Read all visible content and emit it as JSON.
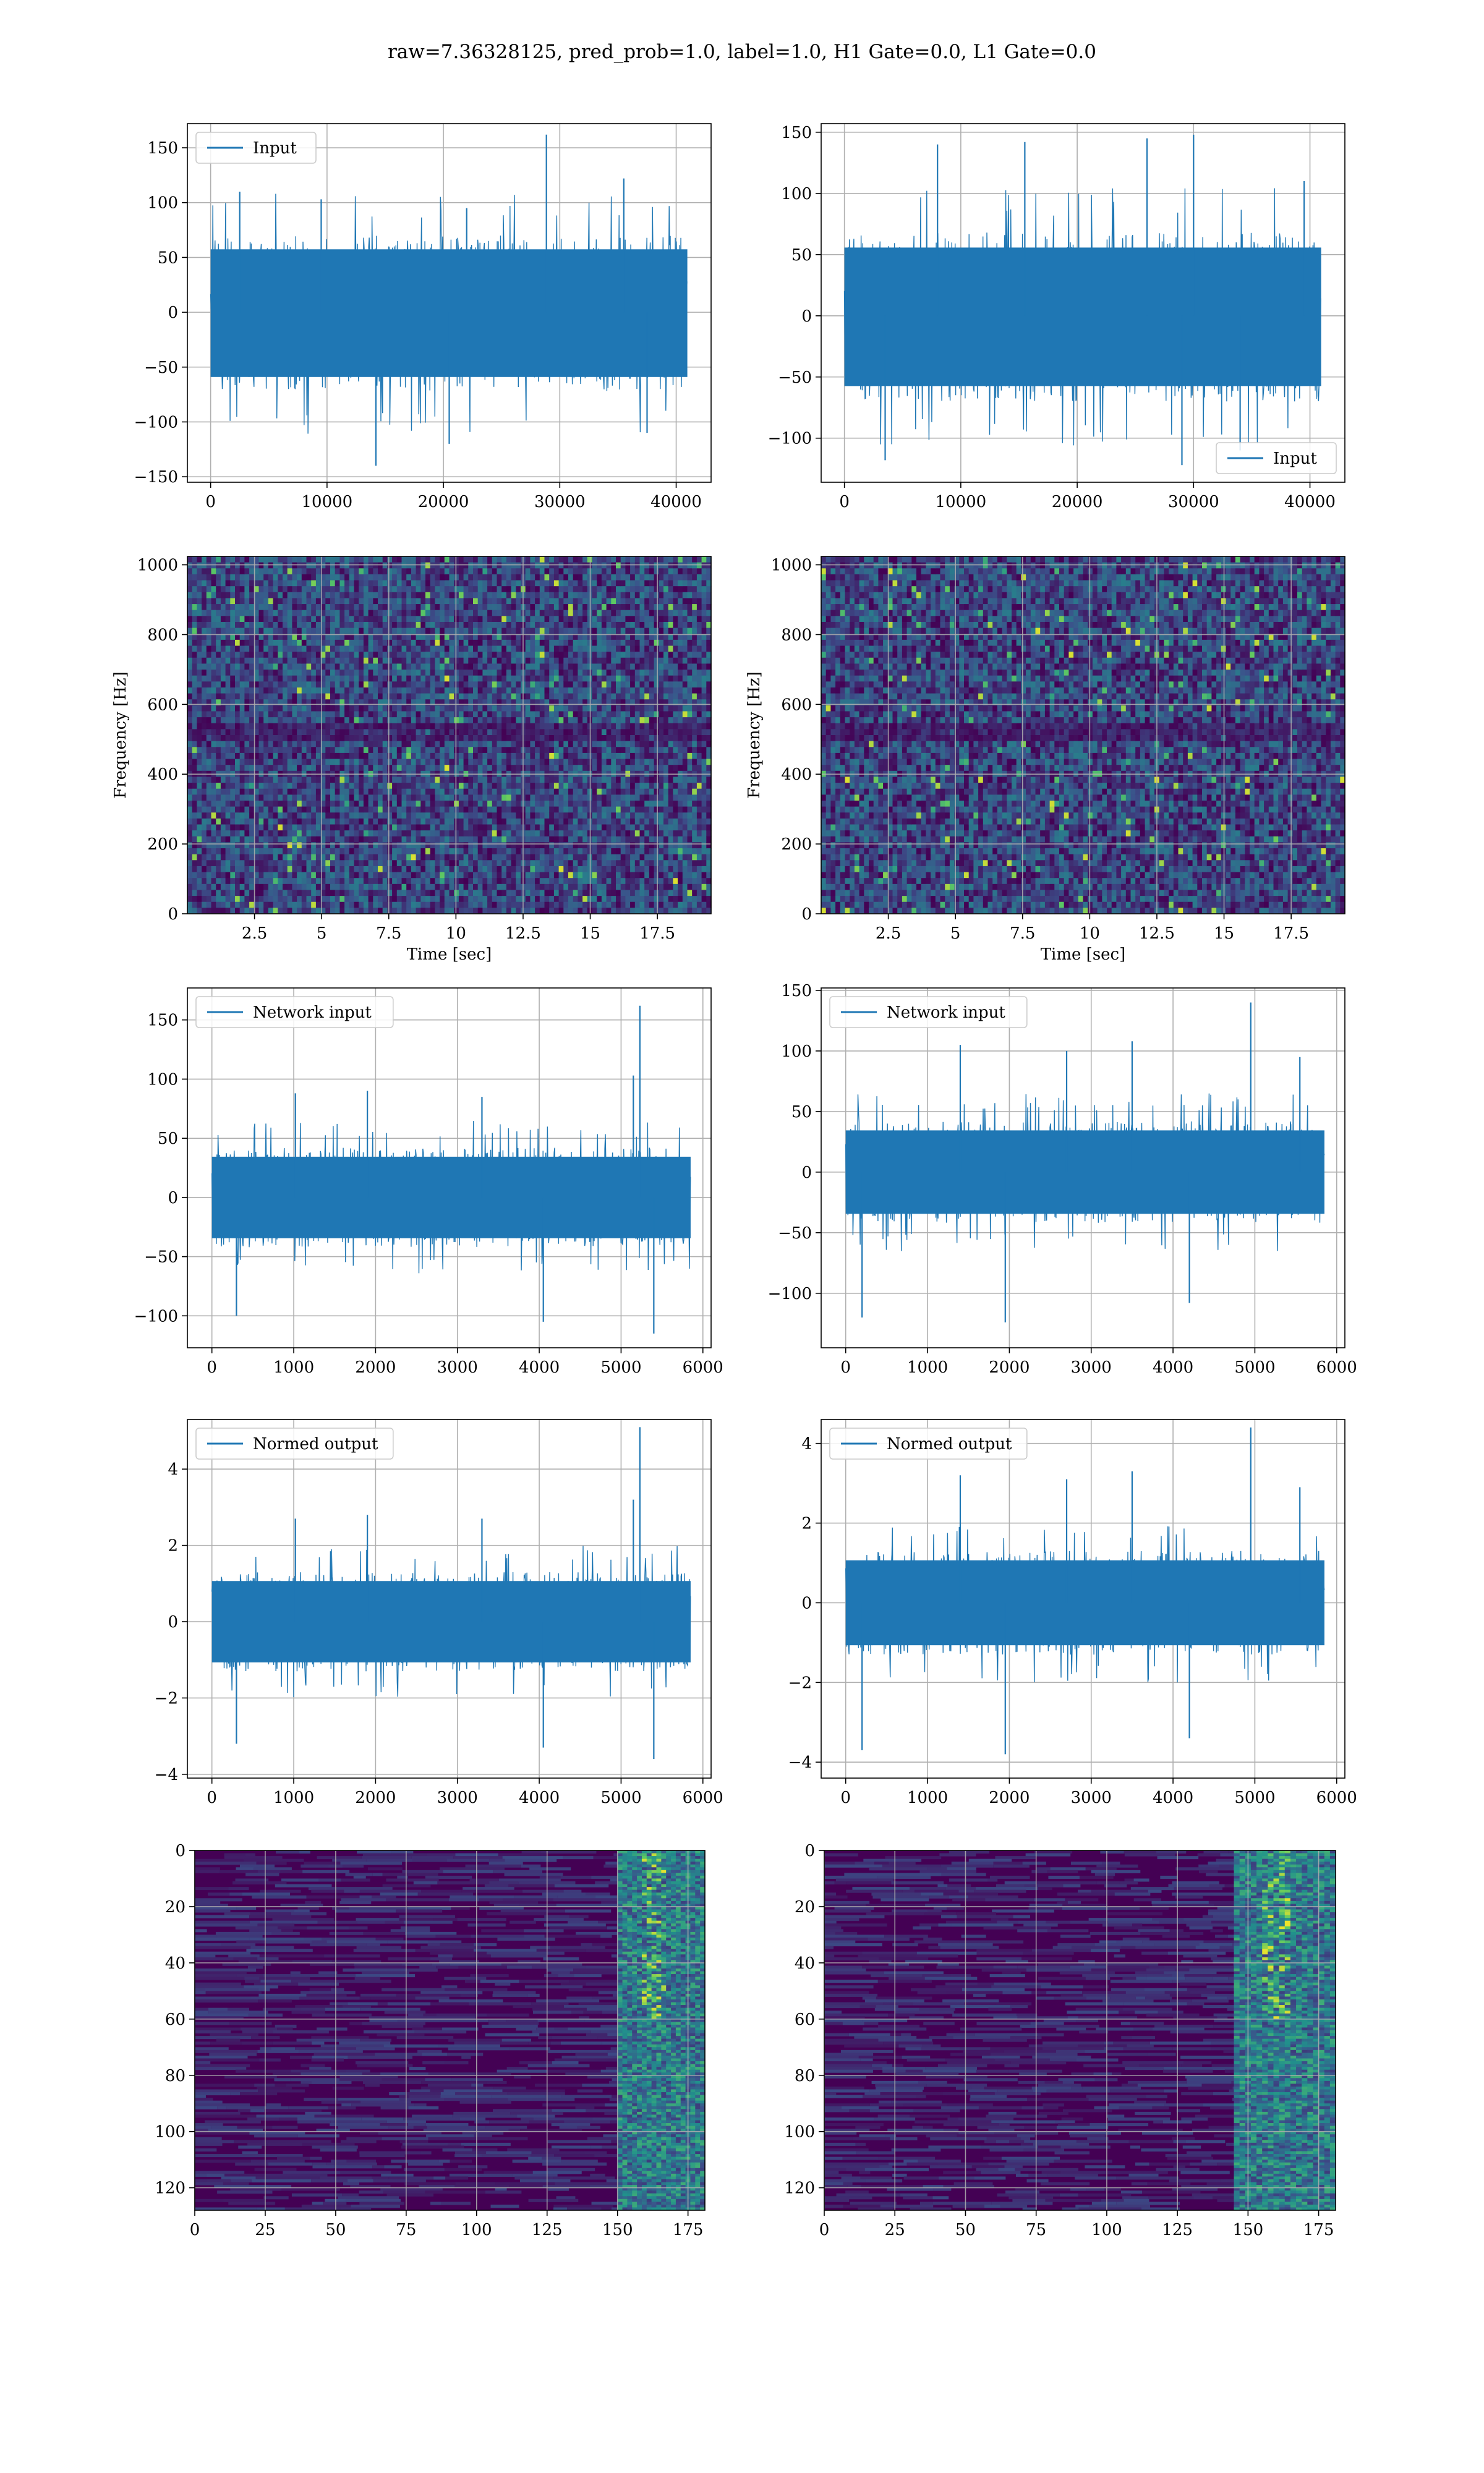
{
  "figure": {
    "title": "raw=7.36328125, pred_prob=1.0, label=1.0, H1 Gate=0.0, L1 Gate=0.0",
    "colors": {
      "series": "#1f77b4",
      "grid": "#b0b0b0",
      "viridis_low": "#440154",
      "viridis_high": "#fde725"
    }
  },
  "chart_data": [
    {
      "id": "r1c1",
      "type": "line",
      "title": "",
      "legend": "Input",
      "legend_loc": "upper left",
      "xlim": [
        -2000,
        43000
      ],
      "ylim": [
        -155,
        172
      ],
      "xticks": [
        0,
        10000,
        20000,
        30000,
        40000
      ],
      "yticks": [
        -150,
        -100,
        -50,
        0,
        50,
        100,
        150
      ],
      "xlabel": "",
      "ylabel": "",
      "grid": true,
      "series": {
        "x_start": 0,
        "x_end": 40960,
        "envelope": [
          -72,
          70
        ],
        "spikes": [
          [
            28850,
            162
          ],
          [
            14200,
            -140
          ],
          [
            2500,
            110
          ],
          [
            9500,
            103
          ],
          [
            22000,
            95
          ],
          [
            35500,
            122
          ],
          [
            20500,
            -120
          ],
          [
            37500,
            -110
          ]
        ]
      }
    },
    {
      "id": "r1c2",
      "type": "line",
      "title": "",
      "legend": "Input",
      "legend_loc": "lower right",
      "xlim": [
        -2000,
        43000
      ],
      "ylim": [
        -136,
        157
      ],
      "xticks": [
        0,
        10000,
        20000,
        30000,
        40000
      ],
      "yticks": [
        -100,
        -50,
        0,
        50,
        100,
        150
      ],
      "xlabel": "",
      "ylabel": "",
      "grid": true,
      "series": {
        "x_start": 0,
        "x_end": 40960,
        "envelope": [
          -70,
          68
        ],
        "spikes": [
          [
            26000,
            145
          ],
          [
            30000,
            148
          ],
          [
            8000,
            140
          ],
          [
            15500,
            142
          ],
          [
            3500,
            -118
          ],
          [
            29000,
            -122
          ],
          [
            34000,
            -110
          ],
          [
            39500,
            110
          ]
        ]
      }
    },
    {
      "id": "r2c1",
      "type": "heatmap",
      "title": "",
      "xlabel": "Time [sec]",
      "ylabel": "Frequency [Hz]",
      "xlim": [
        0,
        19.5
      ],
      "ylim": [
        0,
        1024
      ],
      "xticks": [
        2.5,
        5.0,
        7.5,
        10.0,
        12.5,
        15.0,
        17.5
      ],
      "yticks": [
        0,
        200,
        400,
        600,
        800,
        1000
      ],
      "colormap": "viridis",
      "grid": true
    },
    {
      "id": "r2c2",
      "type": "heatmap",
      "title": "",
      "xlabel": "Time [sec]",
      "ylabel": "Frequency [Hz]",
      "xlim": [
        0,
        19.5
      ],
      "ylim": [
        0,
        1024
      ],
      "xticks": [
        2.5,
        5.0,
        7.5,
        10.0,
        12.5,
        15.0,
        17.5
      ],
      "yticks": [
        0,
        200,
        400,
        600,
        800,
        1000
      ],
      "colormap": "viridis",
      "grid": true
    },
    {
      "id": "r3c1",
      "type": "line",
      "title": "",
      "legend": "Network input",
      "legend_loc": "upper left",
      "xlim": [
        -300,
        6100
      ],
      "ylim": [
        -127,
        177
      ],
      "xticks": [
        0,
        1000,
        2000,
        3000,
        4000,
        5000,
        6000
      ],
      "yticks": [
        -100,
        -50,
        0,
        50,
        100,
        150
      ],
      "xlabel": "",
      "ylabel": "",
      "grid": true,
      "series": {
        "x_start": 0,
        "x_end": 5850,
        "envelope": [
          -42,
          42
        ],
        "spikes": [
          [
            5230,
            162
          ],
          [
            5150,
            103
          ],
          [
            5400,
            -115
          ],
          [
            1020,
            88
          ],
          [
            4050,
            -105
          ],
          [
            1900,
            90
          ],
          [
            300,
            -100
          ],
          [
            3300,
            85
          ]
        ]
      }
    },
    {
      "id": "r3c2",
      "type": "line",
      "title": "",
      "legend": "Network input",
      "legend_loc": "upper left",
      "xlim": [
        -300,
        6100
      ],
      "ylim": [
        -145,
        152
      ],
      "xticks": [
        0,
        1000,
        2000,
        3000,
        4000,
        5000,
        6000
      ],
      "yticks": [
        -100,
        -50,
        0,
        50,
        100,
        150
      ],
      "xlabel": "",
      "ylabel": "",
      "grid": true,
      "series": {
        "x_start": 0,
        "x_end": 5850,
        "envelope": [
          -42,
          42
        ],
        "spikes": [
          [
            4950,
            140
          ],
          [
            1400,
            105
          ],
          [
            3500,
            108
          ],
          [
            5550,
            95
          ],
          [
            1950,
            -124
          ],
          [
            200,
            -120
          ],
          [
            4200,
            -108
          ],
          [
            2700,
            100
          ]
        ]
      }
    },
    {
      "id": "r4c1",
      "type": "line",
      "title": "",
      "legend": "Normed output",
      "legend_loc": "upper left",
      "xlim": [
        -300,
        6100
      ],
      "ylim": [
        -4.1,
        5.3
      ],
      "xticks": [
        0,
        1000,
        2000,
        3000,
        4000,
        5000,
        6000
      ],
      "yticks": [
        -4,
        -2,
        0,
        2,
        4
      ],
      "xlabel": "",
      "ylabel": "",
      "grid": true,
      "series": {
        "x_start": 0,
        "x_end": 5850,
        "envelope": [
          -1.3,
          1.3
        ],
        "spikes": [
          [
            5230,
            5.1
          ],
          [
            5150,
            3.2
          ],
          [
            5400,
            -3.6
          ],
          [
            1020,
            2.7
          ],
          [
            4050,
            -3.3
          ],
          [
            300,
            -3.2
          ],
          [
            1900,
            2.8
          ],
          [
            3300,
            2.7
          ]
        ]
      }
    },
    {
      "id": "r4c2",
      "type": "line",
      "title": "",
      "legend": "Normed output",
      "legend_loc": "upper left",
      "xlim": [
        -300,
        6100
      ],
      "ylim": [
        -4.4,
        4.6
      ],
      "xticks": [
        0,
        1000,
        2000,
        3000,
        4000,
        5000,
        6000
      ],
      "yticks": [
        -4,
        -2,
        0,
        2,
        4
      ],
      "xlabel": "",
      "ylabel": "",
      "grid": true,
      "series": {
        "x_start": 0,
        "x_end": 5850,
        "envelope": [
          -1.3,
          1.3
        ],
        "spikes": [
          [
            4950,
            4.4
          ],
          [
            1400,
            3.2
          ],
          [
            3500,
            3.3
          ],
          [
            5550,
            2.9
          ],
          [
            1950,
            -3.8
          ],
          [
            200,
            -3.7
          ],
          [
            4200,
            -3.4
          ],
          [
            2700,
            3.1
          ]
        ]
      }
    },
    {
      "id": "r5c1",
      "type": "heatmap",
      "title": "",
      "xlabel": "",
      "ylabel": "",
      "xlim": [
        0,
        181
      ],
      "ylim": [
        128,
        0
      ],
      "xticks": [
        0,
        25,
        50,
        75,
        100,
        125,
        150,
        175
      ],
      "yticks": [
        0,
        20,
        40,
        60,
        80,
        100,
        120
      ],
      "colormap": "viridis",
      "grid": true,
      "hot_region_x": [
        150,
        181
      ]
    },
    {
      "id": "r5c2",
      "type": "heatmap",
      "title": "",
      "xlabel": "",
      "ylabel": "",
      "xlim": [
        0,
        181
      ],
      "ylim": [
        128,
        0
      ],
      "xticks": [
        0,
        25,
        50,
        75,
        100,
        125,
        150,
        175
      ],
      "yticks": [
        0,
        20,
        40,
        60,
        80,
        100,
        120
      ],
      "colormap": "viridis",
      "grid": true,
      "hot_region_x": [
        145,
        181
      ]
    }
  ]
}
